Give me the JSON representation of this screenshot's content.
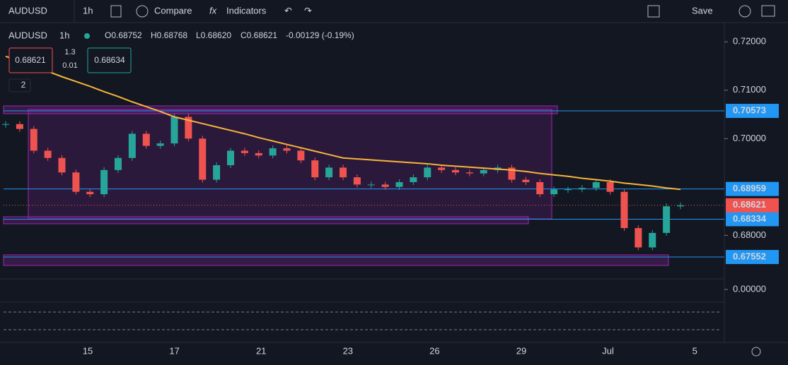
{
  "toolbar": {
    "symbol": "AUDUSD",
    "interval": "1h",
    "compare": "Compare",
    "indicators": "Indicators",
    "save": "Save"
  },
  "legend": {
    "symbol": "AUDUSD",
    "interval": "1h",
    "open": "O0.68752",
    "high": "H0.68768",
    "low": "L0.68620",
    "close": "C0.68621",
    "change": "-0.00129 (-0.19%)"
  },
  "order_panel": {
    "sell": "0.68621",
    "spread_top": "1.3",
    "spread_bottom": "0.01",
    "buy": "0.68634"
  },
  "indicator_toggle": "2",
  "chart_data": {
    "type": "candlestick",
    "closes": [
      0.703,
      0.702,
      0.6975,
      0.696,
      0.693,
      0.689,
      0.6885,
      0.6935,
      0.696,
      0.701,
      0.6985,
      0.699,
      0.7045,
      0.7,
      0.6915,
      0.6945,
      0.6975,
      0.697,
      0.6965,
      0.698,
      0.6975,
      0.6955,
      0.692,
      0.694,
      0.692,
      0.6905,
      0.6905,
      0.69,
      0.691,
      0.692,
      0.694,
      0.6935,
      0.693,
      0.6928,
      0.6935,
      0.694,
      0.6915,
      0.691,
      0.6885,
      0.6895,
      0.6895,
      0.6898,
      0.691,
      0.689,
      0.6815,
      0.6775,
      0.6805,
      0.686,
      0.6862
    ],
    "ma": [
      0.717,
      0.716,
      0.7149,
      0.7139,
      0.7128,
      0.7118,
      0.7108,
      0.7097,
      0.7087,
      0.7076,
      0.7066,
      0.7056,
      0.7045,
      0.7038,
      0.7031,
      0.7024,
      0.7017,
      0.701,
      0.7002,
      0.6995,
      0.6988,
      0.6981,
      0.6974,
      0.6967,
      0.696,
      0.6958,
      0.6956,
      0.6954,
      0.6952,
      0.695,
      0.6948,
      0.6945,
      0.6943,
      0.6941,
      0.6939,
      0.6937,
      0.6935,
      0.6932,
      0.6928,
      0.6925,
      0.6922,
      0.6918,
      0.6915,
      0.6912,
      0.6908,
      0.6905,
      0.6902,
      0.6898,
      0.6895
    ],
    "ylim": [
      0.671,
      0.7234
    ],
    "yticks": [
      {
        "value": 0.72,
        "label": "0.72000"
      },
      {
        "value": 0.71,
        "label": "0.71000"
      },
      {
        "value": 0.7,
        "label": "0.70000"
      },
      {
        "value": 0.68,
        "label": "0.68000"
      }
    ],
    "levels": [
      {
        "value": 0.70573,
        "label": "0.70573"
      },
      {
        "value": 0.68959,
        "label": "0.68959"
      },
      {
        "value": 0.68334,
        "label": "0.68334"
      },
      {
        "value": 0.67552,
        "label": "0.67552"
      }
    ],
    "last_price": {
      "value": 0.68621,
      "label": "0.68621"
    },
    "macd_zero": {
      "value": 0,
      "label": "0.00000"
    },
    "x_labels": [
      "15",
      "17",
      "21",
      "23",
      "26",
      "29",
      "Jul",
      "5"
    ]
  }
}
